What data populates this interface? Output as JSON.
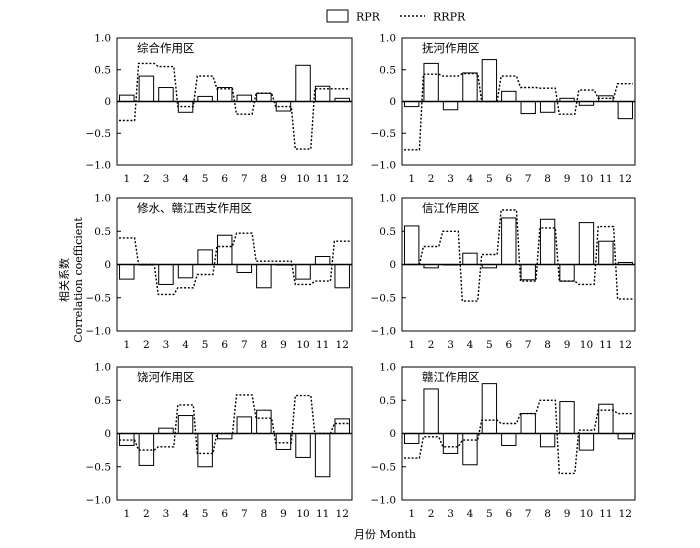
{
  "figure": {
    "legend": {
      "rpr_label": "RPR",
      "rrpr_label": "RRPR"
    },
    "ylabel_zh": "相关系数",
    "ylabel_en": "Correlation coefficient",
    "xlabel": "月份 Month"
  },
  "chart_data": [
    {
      "type": "bar",
      "title": "综合作用区",
      "categories": [
        "1",
        "2",
        "3",
        "4",
        "5",
        "6",
        "7",
        "8",
        "9",
        "10",
        "11",
        "12"
      ],
      "ylim": [
        -1.0,
        1.0
      ],
      "yticks": [
        "1.0",
        "0.5",
        "0",
        "−0.5",
        "−1.0"
      ],
      "series": [
        {
          "name": "RPR",
          "style": "bar",
          "values": [
            0.1,
            0.4,
            0.22,
            -0.17,
            0.08,
            0.22,
            0.1,
            0.13,
            -0.15,
            0.57,
            0.24,
            0.05
          ]
        },
        {
          "name": "RRPR",
          "style": "dotted-step",
          "values": [
            -0.3,
            0.6,
            0.55,
            -0.08,
            0.4,
            0.2,
            -0.2,
            0.13,
            -0.08,
            -0.75,
            0.2,
            0.2
          ]
        }
      ]
    },
    {
      "type": "bar",
      "title": "抚河作用区",
      "categories": [
        "1",
        "2",
        "3",
        "4",
        "5",
        "6",
        "7",
        "8",
        "9",
        "10",
        "11",
        "12"
      ],
      "ylim": [
        -1.0,
        1.0
      ],
      "yticks": [
        "1.0",
        "0.5",
        "0",
        "−0.5",
        "−1.0"
      ],
      "series": [
        {
          "name": "RPR",
          "style": "bar",
          "values": [
            -0.08,
            0.6,
            -0.13,
            0.45,
            0.66,
            0.16,
            -0.19,
            -0.17,
            0.05,
            -0.06,
            0.09,
            -0.27
          ]
        },
        {
          "name": "RRPR",
          "style": "dotted-step",
          "values": [
            -0.76,
            0.43,
            0.4,
            0.44,
            0.0,
            0.4,
            0.22,
            0.21,
            -0.2,
            0.18,
            0.05,
            0.28
          ]
        }
      ]
    },
    {
      "type": "bar",
      "title": "修水、赣江西支作用区",
      "categories": [
        "1",
        "2",
        "3",
        "4",
        "5",
        "6",
        "7",
        "8",
        "9",
        "10",
        "11",
        "12"
      ],
      "ylim": [
        -1.0,
        1.0
      ],
      "yticks": [
        "1.0",
        "0.5",
        "0",
        "−0.5",
        "−1.0"
      ],
      "series": [
        {
          "name": "RPR",
          "style": "bar",
          "values": [
            -0.22,
            0.0,
            -0.3,
            -0.2,
            0.22,
            0.44,
            -0.12,
            -0.35,
            0.0,
            -0.22,
            0.12,
            -0.35
          ]
        },
        {
          "name": "RRPR",
          "style": "dotted-step",
          "values": [
            0.4,
            0.0,
            -0.45,
            -0.35,
            -0.15,
            0.27,
            0.47,
            0.05,
            0.05,
            -0.3,
            -0.25,
            0.35
          ]
        }
      ]
    },
    {
      "type": "bar",
      "title": "信江作用区",
      "categories": [
        "1",
        "2",
        "3",
        "4",
        "5",
        "6",
        "7",
        "8",
        "9",
        "10",
        "11",
        "12"
      ],
      "ylim": [
        -1.0,
        1.0
      ],
      "yticks": [
        "1.0",
        "0.5",
        "0",
        "−0.5",
        "−1.0"
      ],
      "series": [
        {
          "name": "RPR",
          "style": "bar",
          "values": [
            0.58,
            -0.05,
            0.0,
            0.17,
            -0.05,
            0.7,
            -0.23,
            0.68,
            -0.25,
            0.63,
            0.35,
            0.03
          ]
        },
        {
          "name": "RRPR",
          "style": "dotted-step",
          "values": [
            0.0,
            0.27,
            0.5,
            -0.55,
            0.15,
            0.82,
            -0.25,
            0.55,
            -0.25,
            -0.3,
            0.57,
            -0.52
          ]
        }
      ]
    },
    {
      "type": "bar",
      "title": "饶河作用区",
      "categories": [
        "1",
        "2",
        "3",
        "4",
        "5",
        "6",
        "7",
        "8",
        "9",
        "10",
        "11",
        "12"
      ],
      "ylim": [
        -1.0,
        1.0
      ],
      "yticks": [
        "1.0",
        "0.5",
        "0",
        "−0.5",
        "−1.0"
      ],
      "series": [
        {
          "name": "RPR",
          "style": "bar",
          "values": [
            -0.18,
            -0.48,
            0.08,
            0.27,
            -0.5,
            -0.08,
            0.25,
            0.35,
            -0.24,
            -0.36,
            -0.65,
            0.22
          ]
        },
        {
          "name": "RRPR",
          "style": "dotted-step",
          "values": [
            -0.1,
            -0.25,
            -0.2,
            0.43,
            -0.3,
            0.0,
            0.58,
            0.23,
            -0.14,
            0.57,
            0.0,
            0.15
          ]
        }
      ]
    },
    {
      "type": "bar",
      "title": "赣江作用区",
      "categories": [
        "1",
        "2",
        "3",
        "4",
        "5",
        "6",
        "7",
        "8",
        "9",
        "10",
        "11",
        "12"
      ],
      "ylim": [
        -1.0,
        1.0
      ],
      "yticks": [
        "1.0",
        "0.5",
        "0",
        "−0.5",
        "−1.0"
      ],
      "series": [
        {
          "name": "RPR",
          "style": "bar",
          "values": [
            -0.15,
            0.67,
            -0.3,
            -0.47,
            0.75,
            -0.18,
            0.3,
            -0.2,
            0.48,
            -0.25,
            0.44,
            -0.08
          ]
        },
        {
          "name": "RRPR",
          "style": "dotted-step",
          "values": [
            -0.37,
            -0.05,
            -0.2,
            -0.1,
            0.2,
            0.15,
            0.3,
            0.5,
            -0.6,
            0.05,
            0.35,
            0.3
          ]
        }
      ]
    }
  ]
}
